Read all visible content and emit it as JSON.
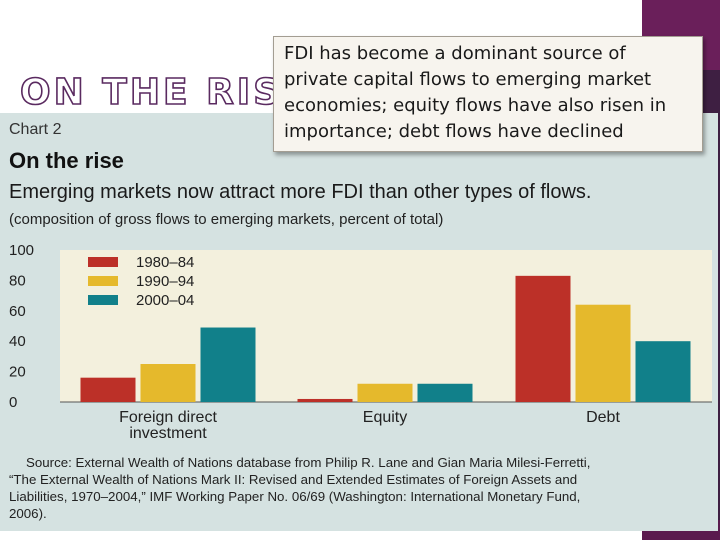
{
  "slide": {
    "title": "ON THE RISE",
    "callout": "FDI has become a dominant source of private capital flows to emerging market economies; equity flows have also risen in importance; debt flows have declined"
  },
  "chart_panel": {
    "label": "Chart 2",
    "heading": "On the rise",
    "subtitle": "Emerging markets now attract more FDI than other types of flows.",
    "units": "(composition of gross flows to emerging markets, percent of total)",
    "source_lines": [
      "Source: External Wealth of Nations database from Philip R. Lane and Gian Maria Milesi-Ferretti,",
      "“The External Wealth of Nations Mark II: Revised and Extended Estimates of Foreign Assets and",
      "Liabilities, 1970–2004,” IMF Working Paper No. 06/69 (Washington: International Monetary Fund,",
      "2006)."
    ]
  },
  "chart_data": {
    "type": "bar",
    "title": "On the rise",
    "xlabel": "",
    "ylabel": "",
    "ylim": [
      0,
      100
    ],
    "yticks": [
      0,
      20,
      40,
      60,
      80,
      100
    ],
    "categories": [
      [
        "Foreign direct",
        "investment"
      ],
      [
        "Equity"
      ],
      [
        "Debt"
      ]
    ],
    "series": [
      {
        "name": "1980–84",
        "color": "#bc3028",
        "values": [
          16,
          2,
          83
        ]
      },
      {
        "name": "1990–94",
        "color": "#e5b92c",
        "values": [
          25,
          12,
          64
        ]
      },
      {
        "name": "2000–04",
        "color": "#11808a",
        "values": [
          49,
          12,
          40
        ]
      }
    ],
    "legend_position": "top-left"
  }
}
